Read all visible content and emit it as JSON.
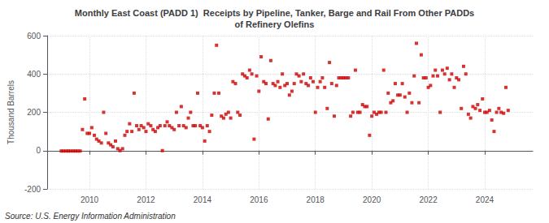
{
  "chart_data": {
    "type": "scatter",
    "title": "Monthly East Coast (PADD 1)  Receipts by Pipeline, Tanker, Barge and Rail From Other PADDs\nof Refinery Olefins",
    "ylabel": "Thousand Barrels",
    "annotations": [
      "Source: U.S. Energy Information Administration"
    ],
    "color": "#cc0000",
    "marker": "square",
    "grid": true,
    "ylim": [
      -200,
      600
    ],
    "yticks": [
      -200,
      0,
      200,
      400,
      600
    ],
    "xlim": [
      2008.5,
      2025.7
    ],
    "xticks": [
      2010,
      2012,
      2014,
      2016,
      2018,
      2020,
      2022,
      2024
    ],
    "x": [
      2009.0,
      2009.08,
      2009.17,
      2009.25,
      2009.33,
      2009.42,
      2009.5,
      2009.58,
      2009.67,
      2009.75,
      2009.83,
      2009.92,
      2010.0,
      2010.08,
      2010.17,
      2010.25,
      2010.33,
      2010.42,
      2010.5,
      2010.58,
      2010.67,
      2010.75,
      2010.83,
      2010.92,
      2011.0,
      2011.08,
      2011.17,
      2011.25,
      2011.33,
      2011.42,
      2011.5,
      2011.58,
      2011.67,
      2011.75,
      2011.83,
      2011.92,
      2012.0,
      2012.08,
      2012.17,
      2012.25,
      2012.33,
      2012.42,
      2012.5,
      2012.58,
      2012.67,
      2012.75,
      2012.83,
      2012.92,
      2013.0,
      2013.08,
      2013.17,
      2013.25,
      2013.33,
      2013.42,
      2013.5,
      2013.58,
      2013.67,
      2013.75,
      2013.83,
      2013.92,
      2014.0,
      2014.08,
      2014.17,
      2014.25,
      2014.33,
      2014.42,
      2014.5,
      2014.58,
      2014.67,
      2014.75,
      2014.83,
      2014.92,
      2015.0,
      2015.08,
      2015.17,
      2015.25,
      2015.33,
      2015.42,
      2015.5,
      2015.58,
      2015.67,
      2015.75,
      2015.83,
      2015.92,
      2016.0,
      2016.08,
      2016.17,
      2016.25,
      2016.33,
      2016.42,
      2016.5,
      2016.58,
      2016.67,
      2016.75,
      2016.83,
      2016.92,
      2017.0,
      2017.08,
      2017.17,
      2017.25,
      2017.33,
      2017.42,
      2017.5,
      2017.58,
      2017.67,
      2017.75,
      2017.83,
      2017.92,
      2018.0,
      2018.08,
      2018.17,
      2018.25,
      2018.33,
      2018.42,
      2018.5,
      2018.58,
      2018.67,
      2018.75,
      2018.83,
      2018.92,
      2019.0,
      2019.08,
      2019.17,
      2019.25,
      2019.33,
      2019.42,
      2019.5,
      2019.58,
      2019.67,
      2019.75,
      2019.83,
      2019.92,
      2020.0,
      2020.08,
      2020.17,
      2020.25,
      2020.33,
      2020.42,
      2020.5,
      2020.58,
      2020.67,
      2020.75,
      2020.83,
      2020.92,
      2021.0,
      2021.08,
      2021.17,
      2021.25,
      2021.33,
      2021.42,
      2021.5,
      2021.58,
      2021.67,
      2021.75,
      2021.83,
      2021.92,
      2022.0,
      2022.08,
      2022.17,
      2022.25,
      2022.33,
      2022.42,
      2022.5,
      2022.58,
      2022.67,
      2022.75,
      2022.83,
      2022.92,
      2023.0,
      2023.08,
      2023.17,
      2023.25,
      2023.33,
      2023.42,
      2023.5,
      2023.58,
      2023.67,
      2023.75,
      2023.83,
      2023.92,
      2024.0,
      2024.08,
      2024.17,
      2024.25,
      2024.33,
      2024.42,
      2024.5,
      2024.58,
      2024.67,
      2024.75,
      2024.83
    ],
    "values": [
      -2,
      -2,
      -2,
      -2,
      -2,
      -2,
      -2,
      -2,
      -2,
      110,
      270,
      90,
      90,
      120,
      80,
      60,
      50,
      40,
      200,
      90,
      40,
      30,
      20,
      50,
      10,
      0,
      10,
      80,
      100,
      140,
      100,
      300,
      130,
      110,
      130,
      120,
      100,
      140,
      130,
      110,
      100,
      120,
      130,
      0,
      130,
      150,
      130,
      120,
      110,
      200,
      130,
      230,
      130,
      120,
      170,
      200,
      130,
      130,
      300,
      130,
      120,
      50,
      130,
      100,
      185,
      300,
      550,
      300,
      180,
      170,
      190,
      200,
      170,
      360,
      350,
      200,
      185,
      400,
      390,
      380,
      420,
      400,
      60,
      390,
      310,
      490,
      360,
      350,
      165,
      470,
      350,
      340,
      360,
      330,
      400,
      340,
      350,
      290,
      310,
      350,
      400,
      390,
      360,
      400,
      350,
      340,
      380,
      360,
      200,
      330,
      360,
      380,
      330,
      220,
      460,
      350,
      180,
      340,
      380,
      380,
      380,
      380,
      380,
      180,
      200,
      420,
      200,
      200,
      240,
      230,
      230,
      80,
      180,
      200,
      190,
      200,
      200,
      420,
      200,
      300,
      250,
      260,
      350,
      290,
      290,
      350,
      280,
      200,
      300,
      250,
      390,
      560,
      250,
      500,
      380,
      380,
      330,
      340,
      390,
      420,
      390,
      200,
      420,
      400,
      430,
      370,
      400,
      330,
      380,
      370,
      220,
      440,
      400,
      190,
      170,
      230,
      220,
      240,
      210,
      270,
      200,
      200,
      210,
      160,
      100,
      200,
      220,
      200,
      195,
      330,
      210
    ]
  }
}
